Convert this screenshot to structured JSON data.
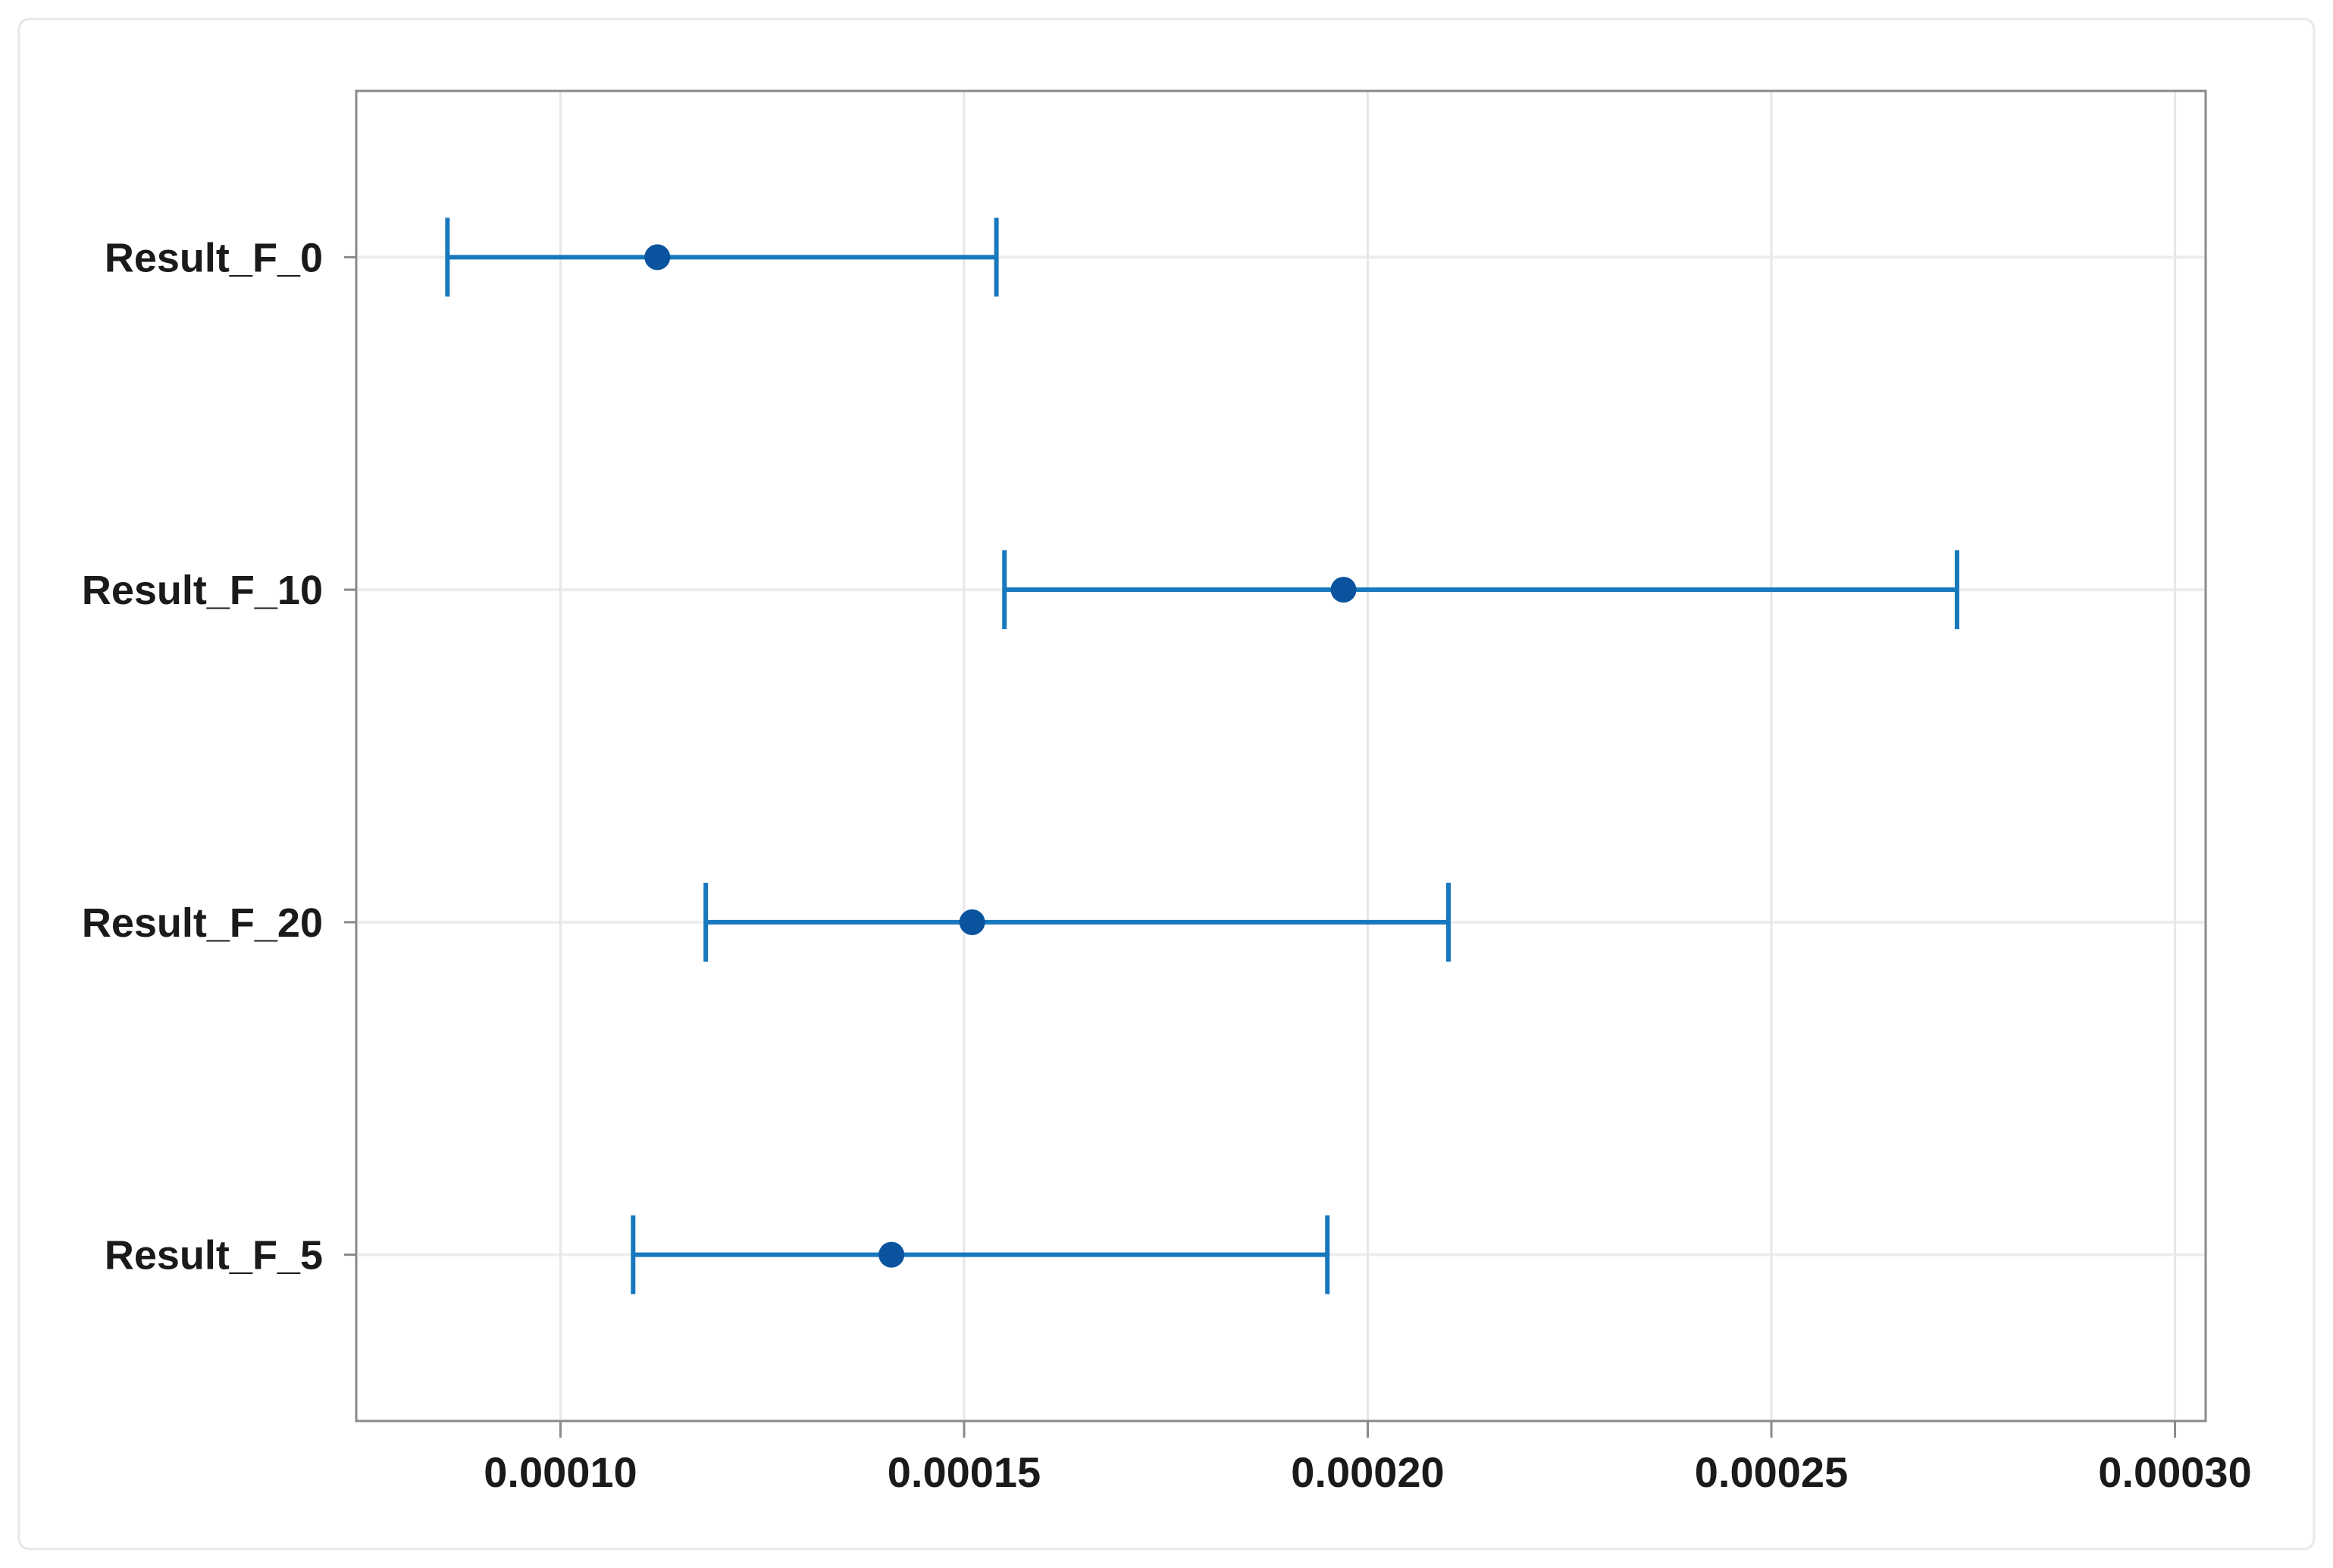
{
  "chart_data": {
    "type": "scatter",
    "subtype": "horizontal_interval_plot",
    "title": "",
    "xlabel": "",
    "ylabel": "",
    "categories": [
      "Result_F_0",
      "Result_F_10",
      "Result_F_20",
      "Result_F_5"
    ],
    "points": [
      {
        "label": "Result_F_0",
        "center": 0.000112,
        "lower": 8.6e-05,
        "upper": 0.000154
      },
      {
        "label": "Result_F_10",
        "center": 0.000197,
        "lower": 0.000155,
        "upper": 0.000273
      },
      {
        "label": "Result_F_20",
        "center": 0.000151,
        "lower": 0.000118,
        "upper": 0.00021
      },
      {
        "label": "Result_F_5",
        "center": 0.000141,
        "lower": 0.000109,
        "upper": 0.000195
      }
    ],
    "x_ticks": [
      0.0001,
      0.00015,
      0.0002,
      0.00025,
      0.0003
    ],
    "x_tick_labels": [
      "0.00010",
      "0.00015",
      "0.00020",
      "0.00025",
      "0.00030"
    ],
    "xlim": [
      7.47e-05,
      0.0003038
    ],
    "grid": {
      "vertical_gridlines": true,
      "category_reference_lines": true
    },
    "legend": "none",
    "colors": {
      "interval_line": "#1878be",
      "point_marker": "#0a539e",
      "vertical_gridline": "#e7e7e7",
      "category_line": "#ededed",
      "plot_frame": "#8a8a8a",
      "figure_border": "#e8e8e8",
      "label_text": "#1a1a1a",
      "background": "#ffffff"
    }
  }
}
